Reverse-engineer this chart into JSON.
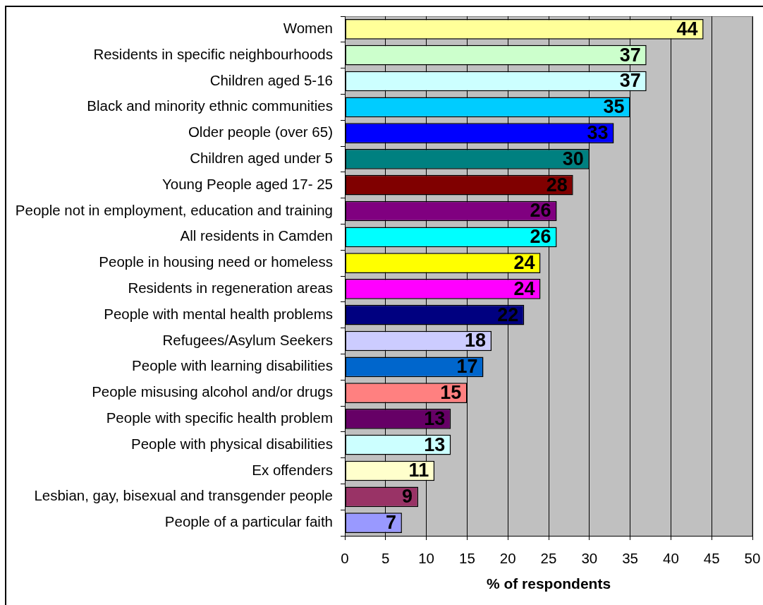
{
  "chart_data": {
    "type": "bar",
    "orientation": "horizontal",
    "categories": [
      "Women",
      "Residents in specific neighbourhoods",
      "Children aged 5-16",
      "Black and minority ethnic communities",
      "Older people (over 65)",
      "Children aged under 5",
      "Young People aged 17- 25",
      "People not in employment, education and training",
      "All residents in Camden",
      "People in housing need or homeless",
      "Residents in regeneration areas",
      "People with mental health problems",
      "Refugees/Asylum Seekers",
      "People with learning disabilities",
      "People misusing alcohol and/or drugs",
      "People with specific health problem",
      "People with physical disabilities",
      "Ex offenders",
      "Lesbian, gay, bisexual and transgender people",
      "People of a particular faith"
    ],
    "values": [
      44,
      37,
      37,
      35,
      33,
      30,
      28,
      26,
      26,
      24,
      24,
      22,
      18,
      17,
      15,
      13,
      13,
      11,
      9,
      7
    ],
    "colors": [
      "#ffff99",
      "#ccffcc",
      "#ccffff",
      "#00ccff",
      "#0000ff",
      "#008080",
      "#800000",
      "#800080",
      "#00ffff",
      "#ffff00",
      "#ff00ff",
      "#000080",
      "#ccccff",
      "#0066cc",
      "#ff8080",
      "#660066",
      "#ccffff",
      "#ffffcc",
      "#993366",
      "#9999ff"
    ],
    "xlim": [
      0,
      50
    ],
    "xticks": [
      0,
      5,
      10,
      15,
      20,
      25,
      30,
      35,
      40,
      45,
      50
    ],
    "xlabel": "% of respondents",
    "grid": "x",
    "data_labels": true
  }
}
